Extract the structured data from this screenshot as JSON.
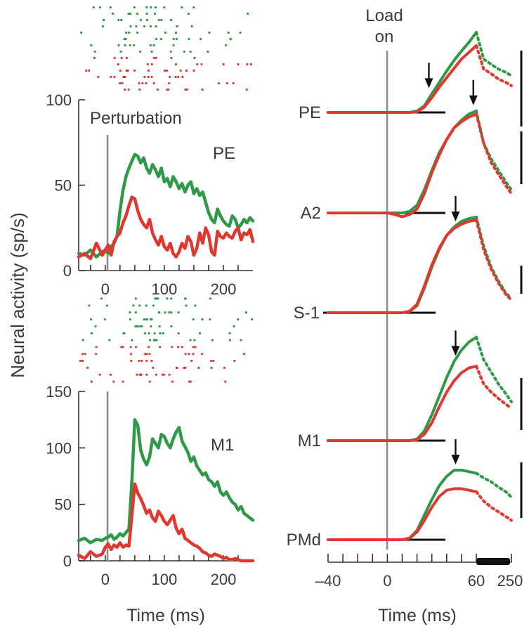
{
  "colors": {
    "green": "#2e9a48",
    "red": "#e2372f",
    "marker": "#8c8c8c",
    "bar": "#111111"
  },
  "figure": {
    "ylabel": "Neural activity (sp/s)",
    "left_xlabel": "Time (ms)",
    "right_xlabel": "Time (ms)",
    "perturbation_label": "Perturbation",
    "load_label_line1": "Load",
    "load_label_line2": "on"
  },
  "chart_data": [
    {
      "type": "line",
      "panel": "left-top",
      "title": "PE",
      "xlabel": "Time (ms)",
      "ylabel": "Neural activity (sp/s)",
      "xlim": [
        -45,
        250
      ],
      "ylim": [
        0,
        100
      ],
      "xticks": [
        0,
        100,
        200
      ],
      "xtick_labels": [
        "0",
        "100",
        "200"
      ],
      "yticks": [
        0,
        50,
        100
      ],
      "ytick_labels": [
        "0",
        "50",
        "100"
      ],
      "marker_x": 0,
      "x": [
        -45,
        -35,
        -25,
        -15,
        -5,
        0,
        5,
        10,
        15,
        20,
        25,
        30,
        35,
        40,
        45,
        50,
        55,
        60,
        65,
        70,
        75,
        80,
        85,
        90,
        95,
        100,
        105,
        110,
        115,
        120,
        125,
        130,
        135,
        140,
        145,
        150,
        155,
        160,
        165,
        170,
        175,
        180,
        185,
        190,
        195,
        200,
        205,
        210,
        215,
        220,
        225,
        230,
        235,
        240,
        245,
        250
      ],
      "series": [
        {
          "color": "green",
          "values": [
            10,
            9,
            12,
            8,
            11,
            12,
            10,
            14,
            16,
            20,
            35,
            47,
            55,
            60,
            64,
            68,
            67,
            63,
            66,
            60,
            57,
            62,
            59,
            55,
            60,
            52,
            54,
            49,
            55,
            52,
            48,
            51,
            46,
            50,
            52,
            45,
            48,
            44,
            46,
            40,
            34,
            30,
            28,
            36,
            32,
            29,
            27,
            26,
            32,
            30,
            25,
            27,
            30,
            28,
            31,
            29
          ]
        },
        {
          "color": "red",
          "values": [
            8,
            10,
            7,
            16,
            9,
            12,
            15,
            9,
            17,
            20,
            22,
            28,
            32,
            38,
            43,
            42,
            35,
            30,
            27,
            25,
            30,
            22,
            18,
            15,
            20,
            14,
            12,
            16,
            10,
            8,
            11,
            16,
            13,
            20,
            17,
            9,
            13,
            22,
            16,
            25,
            21,
            11,
            9,
            23,
            20,
            19,
            22,
            20,
            19,
            23,
            25,
            18,
            22,
            21,
            24,
            17
          ]
        }
      ]
    },
    {
      "type": "line",
      "panel": "left-bottom",
      "title": "M1",
      "xlabel": "Time (ms)",
      "ylabel": "Neural activity (sp/s)",
      "xlim": [
        -45,
        250
      ],
      "ylim": [
        0,
        150
      ],
      "xticks": [
        0,
        100,
        200
      ],
      "xtick_labels": [
        "0",
        "100",
        "200"
      ],
      "yticks": [
        0,
        50,
        100,
        150
      ],
      "ytick_labels": [
        "0",
        "50",
        "100",
        "150"
      ],
      "marker_x": 0,
      "x": [
        -45,
        -35,
        -25,
        -15,
        -5,
        0,
        5,
        10,
        15,
        20,
        25,
        30,
        35,
        40,
        45,
        50,
        55,
        60,
        65,
        70,
        75,
        80,
        85,
        90,
        95,
        100,
        105,
        110,
        115,
        120,
        125,
        130,
        135,
        140,
        145,
        150,
        155,
        160,
        165,
        170,
        175,
        180,
        185,
        190,
        195,
        200,
        205,
        210,
        215,
        220,
        225,
        230,
        235,
        240,
        245,
        250
      ],
      "series": [
        {
          "color": "green",
          "values": [
            18,
            20,
            16,
            19,
            18,
            20,
            21,
            23,
            19,
            21,
            24,
            22,
            25,
            28,
            70,
            125,
            120,
            98,
            90,
            85,
            92,
            108,
            104,
            100,
            112,
            110,
            104,
            100,
            108,
            114,
            118,
            106,
            101,
            96,
            88,
            92,
            84,
            80,
            76,
            78,
            72,
            70,
            66,
            70,
            61,
            58,
            61,
            56,
            52,
            50,
            45,
            48,
            42,
            40,
            38,
            36
          ]
        },
        {
          "color": "red",
          "values": [
            5,
            2,
            8,
            4,
            6,
            12,
            15,
            10,
            14,
            12,
            16,
            12,
            14,
            13,
            40,
            68,
            60,
            55,
            49,
            42,
            45,
            38,
            35,
            44,
            40,
            35,
            32,
            36,
            40,
            29,
            24,
            28,
            20,
            18,
            16,
            14,
            13,
            11,
            8,
            7,
            5,
            4,
            6,
            5,
            4,
            2,
            3,
            1,
            1,
            2,
            1,
            0,
            0,
            0,
            0,
            0
          ]
        }
      ]
    },
    {
      "type": "line",
      "panel": "right",
      "title": "",
      "xlabel": "Time (ms)",
      "ylabel": "",
      "xlim": [
        -40,
        60
      ],
      "xticks": [
        -40,
        -30,
        -20,
        -10,
        0,
        10,
        20,
        30,
        40,
        50,
        60
      ],
      "xtick_labels": [
        "–40",
        "0",
        "60",
        "250"
      ],
      "note": "After 60 ms the time axis is compressed (thick bar) up to 250 ms; traces continue dashed.",
      "marker_x": 0,
      "units": "relative activity (each trace scaled; vertical scale bars)",
      "x": [
        -40,
        -30,
        -20,
        -10,
        0,
        5,
        10,
        15,
        20,
        25,
        30,
        35,
        40,
        45,
        50,
        55,
        60
      ],
      "x_compressed": [
        60,
        100,
        140,
        180,
        220,
        250
      ],
      "rows": [
        {
          "label": "PE",
          "arrow_x": 28,
          "series": [
            {
              "color": "green",
              "values": [
                0,
                0,
                0,
                0,
                0,
                0,
                0,
                0,
                0.02,
                0.1,
                0.28,
                0.45,
                0.62,
                0.78,
                0.92,
                1.05,
                1.2
              ],
              "tail": [
                1.2,
                0.8,
                0.72,
                0.65,
                0.6,
                0.55
              ]
            },
            {
              "color": "red",
              "values": [
                0,
                0,
                0,
                0,
                0,
                0,
                0,
                0,
                0.01,
                0.08,
                0.22,
                0.38,
                0.52,
                0.66,
                0.8,
                0.9,
                1.0
              ],
              "tail": [
                1.0,
                0.65,
                0.58,
                0.5,
                0.45,
                0.4
              ]
            }
          ]
        },
        {
          "label": "A2",
          "arrow_x": 62,
          "series": [
            {
              "color": "green",
              "values": [
                0,
                0,
                0,
                0,
                0,
                0,
                0,
                0.02,
                0.1,
                0.3,
                0.55,
                0.78,
                0.95,
                1.1,
                1.2,
                1.28,
                1.32
              ],
              "tail": [
                1.32,
                0.9,
                0.7,
                0.55,
                0.4,
                0.3
              ]
            },
            {
              "color": "red",
              "values": [
                0,
                0,
                0,
                0,
                0,
                -0.02,
                -0.05,
                -0.02,
                0.05,
                0.25,
                0.52,
                0.75,
                0.95,
                1.1,
                1.18,
                1.24,
                1.28
              ],
              "tail": [
                1.28,
                0.9,
                0.65,
                0.5,
                0.35,
                0.25
              ]
            }
          ]
        },
        {
          "label": "S-1",
          "arrow_x": 46,
          "series": [
            {
              "color": "green",
              "values": [
                0,
                0,
                0,
                0,
                0,
                0,
                0,
                0.02,
                0.1,
                0.35,
                0.65,
                0.9,
                1.1,
                1.22,
                1.3,
                1.34,
                1.36
              ],
              "tail": [
                1.36,
                0.95,
                0.65,
                0.45,
                0.28,
                0.2
              ]
            },
            {
              "color": "red",
              "values": [
                0,
                0,
                0,
                0,
                0,
                0,
                0,
                0.02,
                0.12,
                0.38,
                0.68,
                0.92,
                1.1,
                1.2,
                1.26,
                1.3,
                1.32
              ],
              "tail": [
                1.32,
                0.9,
                0.62,
                0.42,
                0.26,
                0.18
              ]
            }
          ]
        },
        {
          "label": "M1",
          "arrow_x": 46,
          "series": [
            {
              "color": "green",
              "values": [
                0,
                0,
                0,
                0,
                0,
                0,
                0,
                0,
                0.02,
                0.12,
                0.32,
                0.55,
                0.78,
                0.98,
                1.12,
                1.22,
                1.28
              ],
              "tail": [
                1.28,
                1.0,
                0.85,
                0.7,
                0.58,
                0.48
              ]
            },
            {
              "color": "red",
              "values": [
                0,
                0,
                0,
                0,
                0,
                0,
                0,
                0,
                0.01,
                0.08,
                0.22,
                0.42,
                0.6,
                0.74,
                0.84,
                0.9,
                0.92
              ],
              "tail": [
                0.92,
                0.7,
                0.6,
                0.52,
                0.45,
                0.4
              ]
            }
          ]
        },
        {
          "label": "PMd",
          "arrow_x": 46,
          "series": [
            {
              "color": "green",
              "values": [
                0,
                0,
                0,
                0,
                0,
                0,
                0,
                0.02,
                0.12,
                0.32,
                0.52,
                0.7,
                0.82,
                0.9,
                0.9,
                0.88,
                0.86
              ],
              "tail": [
                0.86,
                0.8,
                0.75,
                0.68,
                0.62,
                0.55
              ]
            },
            {
              "color": "red",
              "values": [
                0,
                0,
                0,
                0,
                0,
                0,
                0,
                0.02,
                0.1,
                0.25,
                0.42,
                0.56,
                0.64,
                0.66,
                0.66,
                0.64,
                0.62
              ],
              "tail": [
                0.62,
                0.5,
                0.42,
                0.36,
                0.3,
                0.25
              ]
            }
          ]
        }
      ],
      "axis_labels": [
        "–40",
        "0",
        "60",
        "250"
      ]
    }
  ]
}
